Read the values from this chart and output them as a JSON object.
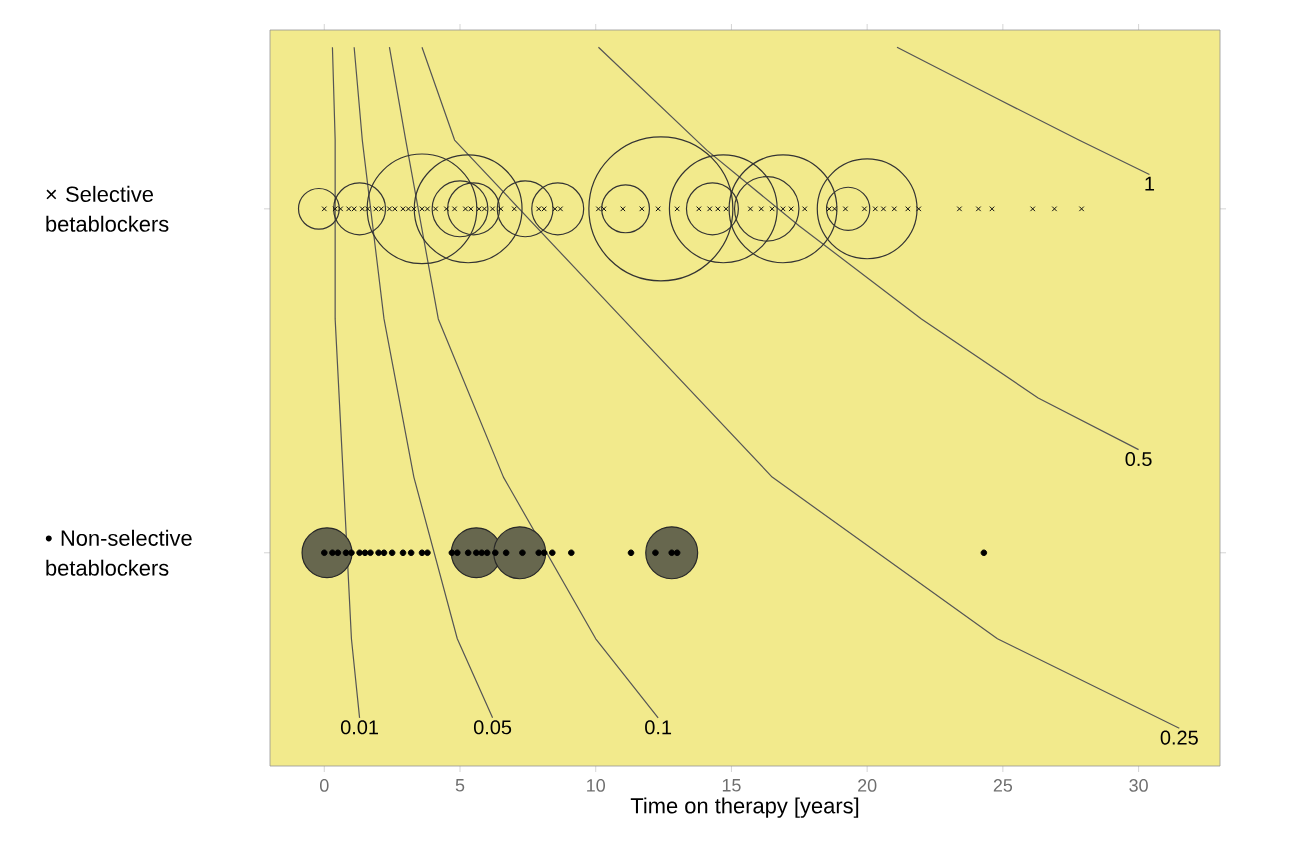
{
  "chart_data": {
    "type": "bubble",
    "orientation": "horizontal",
    "categories": [
      "× Selective betablockers",
      "• Non-selective betablockers"
    ],
    "xlabel": "Time on therapy [years]",
    "xlim": [
      -2,
      33
    ],
    "xticks": [
      0,
      5,
      10,
      15,
      20,
      25,
      30
    ],
    "annotations": [
      "0.01",
      "0.05",
      "0.1",
      "0.25",
      "0.5",
      "1"
    ],
    "series": [
      {
        "type": "bubble",
        "marker": "circle",
        "color": "#333333",
        "values": [
          -0.2,
          1.3,
          3.6,
          5.3,
          5.0,
          5.5,
          7.4,
          8.6,
          12.4,
          11.1,
          14.7,
          14.3,
          16.9,
          16.3,
          20.0,
          19.3
        ],
        "sizes": [
          0.08,
          0.13,
          0.58,
          0.56,
          0.15,
          0.13,
          0.15,
          0.13,
          1,
          0.11,
          0.56,
          0.13,
          0.56,
          0.2,
          0.48,
          0.09
        ],
        "x": [
          "× Selective betablockers",
          "× Selective betablockers",
          "× Selective betablockers",
          "× Selective betablockers",
          "× Selective betablockers",
          "× Selective betablockers",
          "× Selective betablockers",
          "× Selective betablockers",
          "× Selective betablockers",
          "× Selective betablockers",
          "× Selective betablockers",
          "× Selective betablockers",
          "× Selective betablockers",
          "× Selective betablockers",
          "× Selective betablockers",
          "× Selective betablockers"
        ]
      },
      {
        "type": "bubble",
        "color": "#67674e",
        "values": [
          0.1,
          5.6,
          7.2,
          12.8
        ],
        "sizes": [
          0.12,
          0.12,
          0.13,
          0.13
        ],
        "x": [
          "• Non-selective betablockers",
          "• Non-selective betablockers",
          "• Non-selective betablockers",
          "• Non-selective betablockers"
        ]
      },
      {
        "type": "scatter",
        "marker": "cross",
        "color": "#111111",
        "values": [
          0.0,
          0.4,
          0.6,
          0.9,
          1.1,
          1.4,
          1.6,
          1.9,
          2.1,
          2.4,
          2.6,
          2.9,
          3.1,
          3.3,
          3.6,
          3.8,
          4.1,
          4.5,
          4.8,
          5.2,
          5.4,
          5.7,
          5.9,
          6.2,
          6.5,
          7.0,
          7.9,
          8.1,
          8.5,
          8.7,
          10.1,
          10.3,
          11.0,
          11.7,
          12.3,
          13.0,
          13.8,
          14.2,
          14.5,
          14.8,
          15.7,
          16.1,
          16.5,
          16.9,
          17.2,
          17.7,
          18.6,
          18.8,
          19.2,
          19.9,
          20.3,
          20.6,
          21.0,
          21.5,
          21.9,
          23.4,
          24.1,
          24.6,
          26.1,
          26.9,
          27.9
        ],
        "x": [
          "× Selective betablockers",
          "× Selective betablockers",
          "× Selective betablockers",
          "× Selective betablockers",
          "× Selective betablockers",
          "× Selective betablockers",
          "× Selective betablockers",
          "× Selective betablockers",
          "× Selective betablockers",
          "× Selective betablockers",
          "× Selective betablockers",
          "× Selective betablockers",
          "× Selective betablockers",
          "× Selective betablockers",
          "× Selective betablockers",
          "× Selective betablockers",
          "× Selective betablockers",
          "× Selective betablockers",
          "× Selective betablockers",
          "× Selective betablockers",
          "× Selective betablockers",
          "× Selective betablockers",
          "× Selective betablockers",
          "× Selective betablockers",
          "× Selective betablockers",
          "× Selective betablockers",
          "× Selective betablockers",
          "× Selective betablockers",
          "× Selective betablockers",
          "× Selective betablockers",
          "× Selective betablockers",
          "× Selective betablockers",
          "× Selective betablockers",
          "× Selective betablockers",
          "× Selective betablockers",
          "× Selective betablockers",
          "× Selective betablockers",
          "× Selective betablockers",
          "× Selective betablockers",
          "× Selective betablockers",
          "× Selective betablockers",
          "× Selective betablockers",
          "× Selective betablockers",
          "× Selective betablockers",
          "× Selective betablockers",
          "× Selective betablockers",
          "× Selective betablockers",
          "× Selective betablockers",
          "× Selective betablockers",
          "× Selective betablockers",
          "× Selective betablockers",
          "× Selective betablockers",
          "× Selective betablockers",
          "× Selective betablockers",
          "× Selective betablockers",
          "× Selective betablockers",
          "× Selective betablockers",
          "× Selective betablockers",
          "× Selective betablockers",
          "× Selective betablockers",
          "× Selective betablockers"
        ]
      },
      {
        "type": "scatter",
        "marker": "circle",
        "color": "#000000",
        "values": [
          0.0,
          0.3,
          0.5,
          0.8,
          1.0,
          1.3,
          1.5,
          1.7,
          2.0,
          2.2,
          2.5,
          2.9,
          3.2,
          3.6,
          3.8,
          4.7,
          4.9,
          5.3,
          5.6,
          5.8,
          6.0,
          6.3,
          6.7,
          7.3,
          7.9,
          8.1,
          8.4,
          9.1,
          11.3,
          12.2,
          12.8,
          13.0,
          24.3
        ],
        "x": [
          "• Non-selective betablockers",
          "• Non-selective betablockers",
          "• Non-selective betablockers",
          "• Non-selective betablockers",
          "• Non-selective betablockers",
          "• Non-selective betablockers",
          "• Non-selective betablockers",
          "• Non-selective betablockers",
          "• Non-selective betablockers",
          "• Non-selective betablockers",
          "• Non-selective betablockers",
          "• Non-selective betablockers",
          "• Non-selective betablockers",
          "• Non-selective betablockers",
          "• Non-selective betablockers",
          "• Non-selective betablockers",
          "• Non-selective betablockers",
          "• Non-selective betablockers",
          "• Non-selective betablockers",
          "• Non-selective betablockers",
          "• Non-selective betablockers",
          "• Non-selective betablockers",
          "• Non-selective betablockers",
          "• Non-selective betablockers",
          "• Non-selective betablockers",
          "• Non-selective betablockers",
          "• Non-selective betablockers",
          "• Non-selective betablockers",
          "• Non-selective betablockers",
          "• Non-selective betablockers",
          "• Non-selective betablockers",
          "• Non-selective betablockers",
          "• Non-selective betablockers"
        ]
      }
    ]
  }
}
